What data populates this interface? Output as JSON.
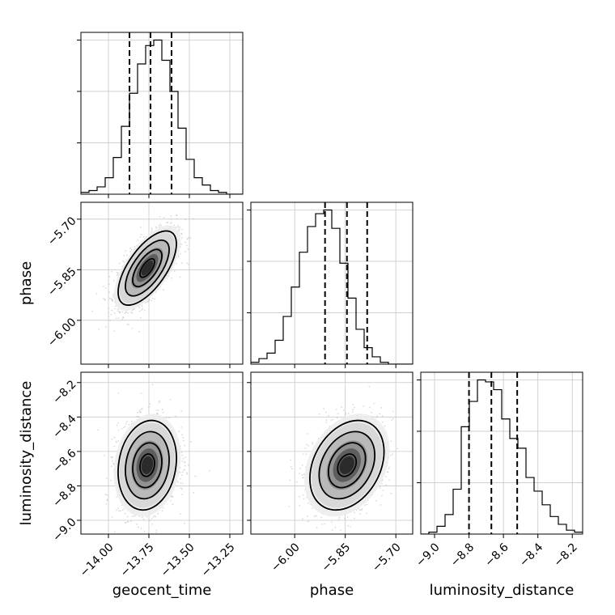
{
  "chart_data": {
    "type": "corner",
    "parameters": [
      "geocent_time",
      "phase",
      "luminosity_distance"
    ],
    "ranges": {
      "geocent_time": [
        -14.17,
        -13.17
      ],
      "phase": [
        -6.13,
        -5.65
      ],
      "luminosity_distance": [
        -9.08,
        -8.14
      ]
    },
    "ticks": {
      "geocent_time": [
        -14.0,
        -13.75,
        -13.5,
        -13.25
      ],
      "phase": [
        -6.0,
        -5.85,
        -5.7
      ],
      "luminosity_distance": [
        -9.0,
        -8.8,
        -8.6,
        -8.4,
        -8.2
      ]
    },
    "tick_labels": {
      "geocent_time": [
        "−14.00",
        "−13.75",
        "−13.50",
        "−13.25"
      ],
      "phase": [
        "−6.00",
        "−5.85",
        "−5.70"
      ],
      "luminosity_distance": [
        "−9.0",
        "−8.8",
        "−8.6",
        "−8.4",
        "−8.2"
      ]
    },
    "axis_labels": {
      "geocent_time": "geocent_time",
      "phase": "phase",
      "luminosity_distance": "luminosity_distance"
    },
    "quantiles": {
      "geocent_time": [
        -13.87,
        -13.74,
        -13.61
      ],
      "phase": [
        -5.91,
        -5.845,
        -5.785
      ],
      "luminosity_distance": [
        -8.8,
        -8.67,
        -8.52
      ]
    },
    "marginals": {
      "geocent_time": {
        "edges_from": -14.17,
        "edges_to": -13.17,
        "counts": [
          1,
          2,
          4,
          9,
          20,
          37,
          55,
          71,
          81,
          84,
          73,
          56,
          36,
          19,
          9,
          5,
          2,
          1,
          0,
          0
        ]
      },
      "phase": {
        "edges_from": -6.13,
        "edges_to": -5.65,
        "counts": [
          1,
          3,
          6,
          13,
          26,
          42,
          61,
          75,
          82,
          84,
          74,
          55,
          36,
          19,
          9,
          4,
          1,
          0,
          0,
          0
        ]
      },
      "luminosity_distance": {
        "edges_from": -9.08,
        "edges_to": -8.14,
        "counts": [
          0,
          1,
          4,
          10,
          23,
          55,
          68,
          79,
          78,
          74,
          59,
          49,
          44,
          29,
          22,
          15,
          9,
          5,
          2,
          1
        ]
      }
    },
    "correlations": [
      {
        "x": "geocent_time",
        "y": "phase",
        "center": [
          -13.76,
          -5.845
        ],
        "sigma": [
          0.09,
          0.055
        ],
        "rho": 0.65
      },
      {
        "x": "geocent_time",
        "y": "luminosity_distance",
        "center": [
          -13.76,
          -8.68
        ],
        "sigma": [
          0.09,
          0.13
        ],
        "rho": 0.15
      },
      {
        "x": "phase",
        "y": "luminosity_distance",
        "center": [
          -5.845,
          -8.68
        ],
        "sigma": [
          0.055,
          0.13
        ],
        "rho": 0.3
      }
    ],
    "grid": true,
    "colors": {
      "hist_line": "#000000",
      "scatter": "#bbbbbb",
      "grid": "#c8c8c8",
      "contour": "#000000"
    }
  }
}
